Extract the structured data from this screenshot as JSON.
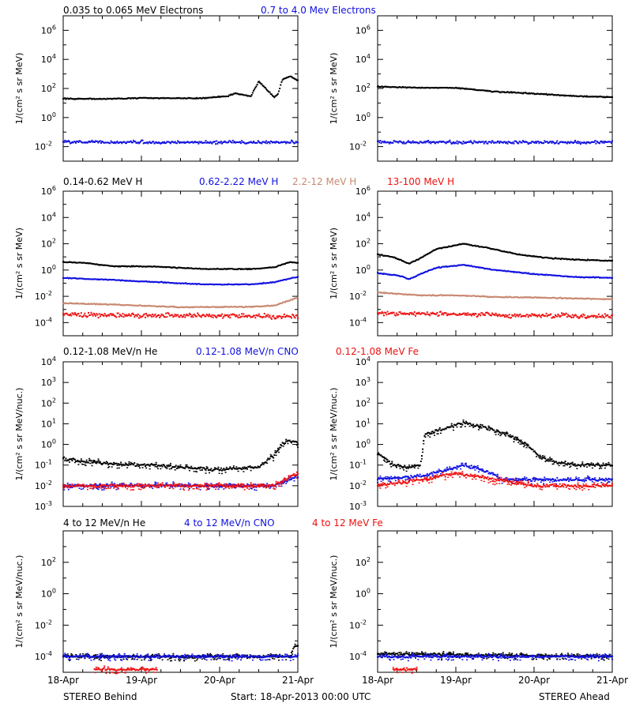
{
  "colors": {
    "black": "#000000",
    "blue": "#1010e0",
    "tan": "#c88870",
    "red": "#ee1010"
  },
  "footer": {
    "left": "STEREO Behind",
    "center": "Start: 18-Apr-2013 00:00 UTC",
    "right": "STEREO Ahead"
  },
  "x_ticks": [
    "18-Apr",
    "19-Apr",
    "20-Apr",
    "21-Apr"
  ],
  "panel_rows": [
    {
      "legend": [
        {
          "text": "0.035 to 0.065 MeV Electrons",
          "color": "black"
        },
        {
          "text": "0.7 to 4.0 Mev Electrons",
          "color": "blue"
        }
      ],
      "ylabel": "1/(cm² s sr MeV)"
    },
    {
      "legend": [
        {
          "text": "0.14-0.62 MeV H",
          "color": "black"
        },
        {
          "text": "0.62-2.22 MeV H",
          "color": "blue"
        },
        {
          "text": "2.2-12 MeV H",
          "color": "tan"
        },
        {
          "text": "13-100 MeV H",
          "color": "red"
        }
      ],
      "ylabel": "1/(cm² s sr MeV)"
    },
    {
      "legend": [
        {
          "text": "0.12-1.08 MeV/n He",
          "color": "black"
        },
        {
          "text": "0.12-1.08 MeV/n CNO",
          "color": "blue"
        },
        {
          "text": "0.12-1.08 MeV Fe",
          "color": "red"
        }
      ],
      "ylabel": "1/(cm² s sr MeV/nuc.)"
    },
    {
      "legend": [
        {
          "text": "4 to 12 MeV/n He",
          "color": "black"
        },
        {
          "text": "4 to 12 MeV/n CNO",
          "color": "blue"
        },
        {
          "text": "4 to 12 MeV Fe",
          "color": "red"
        }
      ],
      "ylabel": "1/(cm² s sr MeV/nuc.)"
    }
  ],
  "chart_data": [
    {
      "type": "scatter",
      "spacecraft": "STEREO Behind",
      "yscale": "log",
      "ylim": [
        0.001,
        10000000
      ],
      "ytick_exponents": [
        -2,
        0,
        2,
        4,
        6
      ],
      "xlim": [
        0,
        3
      ],
      "series": [
        {
          "name": "0.035 to 0.065 MeV Electrons",
          "color": "black",
          "x": [
            0,
            0.5,
            1.0,
            1.5,
            1.8,
            2.1,
            2.2,
            2.4,
            2.5,
            2.7,
            2.75,
            2.8,
            2.9,
            3.0
          ],
          "y": [
            20,
            19,
            22,
            21,
            22,
            30,
            45,
            30,
            300,
            25,
            45,
            400,
            700,
            350
          ]
        },
        {
          "name": "0.7 to 4.0 Mev Electrons",
          "color": "blue",
          "x": [
            0,
            3
          ],
          "y": [
            0.02,
            0.02
          ]
        }
      ]
    },
    {
      "type": "scatter",
      "spacecraft": "STEREO Ahead",
      "yscale": "log",
      "ylim": [
        0.001,
        10000000
      ],
      "ytick_exponents": [
        -2,
        0,
        2,
        4,
        6
      ],
      "xlim": [
        0,
        3
      ],
      "series": [
        {
          "name": "0.035 to 0.065 MeV Electrons",
          "color": "black",
          "x": [
            0,
            0.5,
            1.0,
            1.5,
            2.0,
            2.5,
            3.0
          ],
          "y": [
            130,
            115,
            110,
            60,
            45,
            30,
            25
          ]
        },
        {
          "name": "0.7 to 4.0 Mev Electrons",
          "color": "blue",
          "x": [
            0,
            3
          ],
          "y": [
            0.02,
            0.02
          ]
        }
      ]
    },
    {
      "type": "scatter",
      "spacecraft": "STEREO Behind",
      "yscale": "log",
      "ylim": [
        1e-05,
        1000000
      ],
      "ytick_exponents": [
        -4,
        -2,
        0,
        2,
        4,
        6
      ],
      "xlim": [
        0,
        3
      ],
      "series": [
        {
          "name": "0.14-0.62 MeV H",
          "color": "black",
          "x": [
            0,
            0.3,
            0.6,
            1.2,
            1.8,
            2.4,
            2.7,
            2.9,
            3.0
          ],
          "y": [
            4,
            3.5,
            2,
            1.8,
            1.2,
            1.2,
            1.6,
            4,
            3.5
          ]
        },
        {
          "name": "0.62-2.22 MeV H",
          "color": "blue",
          "x": [
            0,
            0.6,
            1.2,
            1.8,
            2.4,
            2.7,
            3.0
          ],
          "y": [
            0.25,
            0.18,
            0.12,
            0.08,
            0.08,
            0.12,
            0.3
          ]
        },
        {
          "name": "2.2-12 MeV H",
          "color": "tan",
          "x": [
            0,
            0.5,
            1.5,
            2.4,
            2.7,
            2.9,
            3.0
          ],
          "y": [
            0.003,
            0.0025,
            0.0015,
            0.0016,
            0.002,
            0.005,
            0.008
          ]
        },
        {
          "name": "13-100 MeV H",
          "color": "red",
          "x": [
            0,
            3
          ],
          "y": [
            0.0004,
            0.0003
          ]
        }
      ]
    },
    {
      "type": "scatter",
      "spacecraft": "STEREO Ahead",
      "yscale": "log",
      "ylim": [
        1e-05,
        1000000
      ],
      "ytick_exponents": [
        -4,
        -2,
        0,
        2,
        4,
        6
      ],
      "xlim": [
        0,
        3
      ],
      "series": [
        {
          "name": "0.14-0.62 MeV H",
          "color": "black",
          "x": [
            0,
            0.2,
            0.4,
            0.55,
            0.75,
            1.1,
            1.4,
            1.8,
            2.2,
            2.6,
            3.0
          ],
          "y": [
            15,
            10,
            3,
            8,
            40,
            100,
            50,
            15,
            8,
            6,
            5
          ]
        },
        {
          "name": "0.62-2.22 MeV H",
          "color": "blue",
          "x": [
            0,
            0.3,
            0.4,
            0.55,
            0.75,
            1.1,
            1.5,
            2.0,
            2.5,
            3.0
          ],
          "y": [
            0.6,
            0.35,
            0.2,
            0.5,
            1.5,
            2.5,
            1.0,
            0.5,
            0.3,
            0.25
          ]
        },
        {
          "name": "2.2-12 MeV H",
          "color": "tan",
          "x": [
            0,
            0.5,
            1.0,
            1.5,
            2.0,
            2.5,
            3.0
          ],
          "y": [
            0.02,
            0.012,
            0.012,
            0.009,
            0.008,
            0.007,
            0.006
          ]
        },
        {
          "name": "13-100 MeV H",
          "color": "red",
          "x": [
            0,
            3
          ],
          "y": [
            0.0005,
            0.0003
          ]
        }
      ]
    },
    {
      "type": "scatter",
      "spacecraft": "STEREO Behind",
      "yscale": "log",
      "ylim": [
        0.001,
        10000
      ],
      "ytick_exponents": [
        -3,
        -2,
        -1,
        0,
        1,
        2,
        3,
        4
      ],
      "xlim": [
        0,
        3
      ],
      "series": [
        {
          "name": "0.12-1.08 MeV/n He",
          "color": "black",
          "x": [
            0,
            0.5,
            1.0,
            1.5,
            2.0,
            2.5,
            2.7,
            2.8,
            2.9,
            3.0
          ],
          "y": [
            0.2,
            0.12,
            0.1,
            0.08,
            0.06,
            0.08,
            0.3,
            1.0,
            1.5,
            1.2
          ]
        },
        {
          "name": "0.12-1.08 MeV/n CNO",
          "color": "blue",
          "x": [
            0,
            2.7,
            3.0
          ],
          "y": [
            0.01,
            0.01,
            0.03
          ]
        },
        {
          "name": "0.12-1.08 MeV Fe",
          "color": "red",
          "x": [
            0,
            2.7,
            3.0
          ],
          "y": [
            0.01,
            0.01,
            0.04
          ]
        }
      ]
    },
    {
      "type": "scatter",
      "spacecraft": "STEREO Ahead",
      "yscale": "log",
      "ylim": [
        0.001,
        10000
      ],
      "ytick_exponents": [
        -3,
        -2,
        -1,
        0,
        1,
        2,
        3,
        4
      ],
      "xlim": [
        0,
        3
      ],
      "series": [
        {
          "name": "0.12-1.08 MeV/n He",
          "color": "black",
          "x": [
            0,
            0.2,
            0.4,
            0.55,
            0.6,
            0.8,
            1.1,
            1.4,
            1.7,
            1.9,
            2.1,
            2.5,
            3.0
          ],
          "y": [
            0.4,
            0.1,
            0.08,
            0.1,
            3,
            5,
            12,
            6,
            2.5,
            1.0,
            0.2,
            0.1,
            0.1
          ]
        },
        {
          "name": "0.12-1.08 MeV/n CNO",
          "color": "blue",
          "x": [
            0,
            0.6,
            1.0,
            1.1,
            1.4,
            1.6,
            3.0
          ],
          "y": [
            0.02,
            0.03,
            0.08,
            0.1,
            0.05,
            0.02,
            0.02
          ]
        },
        {
          "name": "0.12-1.08 MeV Fe",
          "color": "red",
          "x": [
            0,
            0.6,
            1.0,
            1.5,
            2.0,
            3.0
          ],
          "y": [
            0.01,
            0.02,
            0.04,
            0.02,
            0.01,
            0.01
          ]
        }
      ]
    },
    {
      "type": "scatter",
      "spacecraft": "STEREO Behind",
      "yscale": "log",
      "ylim": [
        1e-05,
        10000
      ],
      "ytick_exponents": [
        -4,
        -2,
        0,
        2
      ],
      "xlim": [
        0,
        3
      ],
      "series": [
        {
          "name": "4 to 12 MeV/n He",
          "color": "black",
          "x": [
            0,
            2.9,
            2.95,
            3.0
          ],
          "y": [
            0.0001,
            0.0001,
            0.0004,
            0.0005
          ]
        },
        {
          "name": "4 to 12 MeV/n CNO",
          "color": "blue",
          "x": [
            0,
            3
          ],
          "y": [
            0.0001,
            0.0001
          ]
        },
        {
          "name": "4 to 12 MeV Fe",
          "color": "red",
          "x": [
            0.4,
            1.2
          ],
          "y": [
            1.5e-05,
            1.5e-05
          ]
        }
      ]
    },
    {
      "type": "scatter",
      "spacecraft": "STEREO Ahead",
      "yscale": "log",
      "ylim": [
        1e-05,
        10000
      ],
      "ytick_exponents": [
        -4,
        -2,
        0,
        2
      ],
      "xlim": [
        0,
        3
      ],
      "series": [
        {
          "name": "4 to 12 MeV/n He",
          "color": "black",
          "x": [
            0,
            3
          ],
          "y": [
            0.00015,
            0.0001
          ]
        },
        {
          "name": "4 to 12 MeV/n CNO",
          "color": "blue",
          "x": [
            0,
            3
          ],
          "y": [
            0.0001,
            0.0001
          ]
        },
        {
          "name": "4 to 12 MeV Fe",
          "color": "red",
          "x": [
            0.2,
            0.5
          ],
          "y": [
            1.5e-05,
            1.5e-05
          ]
        }
      ]
    }
  ]
}
